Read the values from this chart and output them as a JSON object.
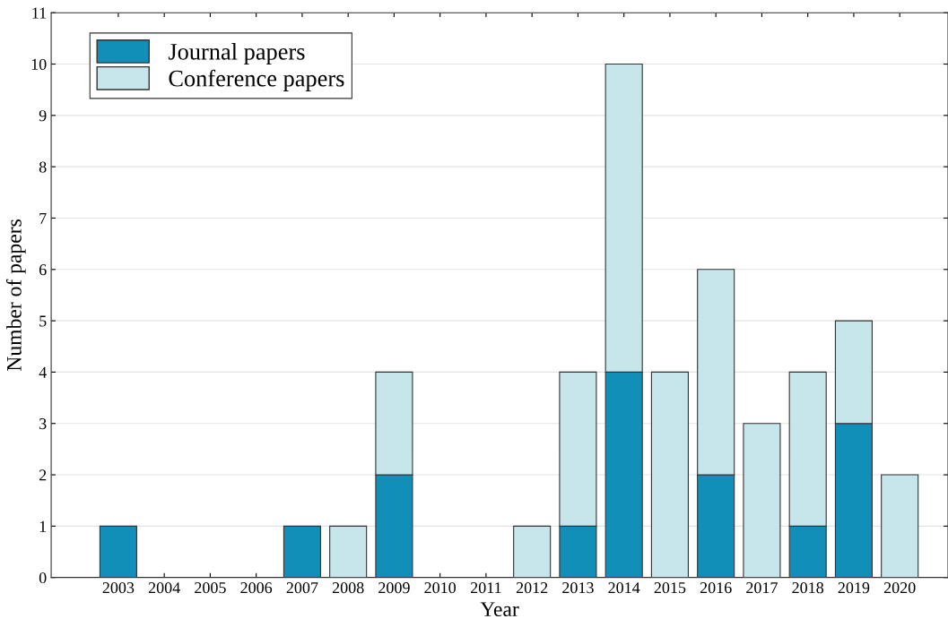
{
  "chart_data": {
    "type": "bar",
    "xlabel": "Year",
    "ylabel": "Number of papers",
    "categories": [
      "2003",
      "2004",
      "2005",
      "2006",
      "2007",
      "2008",
      "2009",
      "2010",
      "2011",
      "2012",
      "2013",
      "2014",
      "2015",
      "2016",
      "2017",
      "2018",
      "2019",
      "2020"
    ],
    "stacked": true,
    "series": [
      {
        "name": "Journal papers",
        "color": "#118fb8",
        "values": [
          1,
          0,
          0,
          0,
          1,
          0,
          2,
          0,
          0,
          0,
          1,
          4,
          0,
          2,
          0,
          1,
          3,
          0
        ]
      },
      {
        "name": "Conference papers",
        "color": "#c6e6ec",
        "values": [
          0,
          0,
          0,
          0,
          0,
          1,
          2,
          0,
          0,
          1,
          3,
          6,
          4,
          4,
          3,
          3,
          2,
          2
        ]
      }
    ],
    "ylim": [
      0,
      11
    ],
    "yticks": [
      0,
      1,
      2,
      3,
      4,
      5,
      6,
      7,
      8,
      9,
      10,
      11
    ],
    "grid": "y",
    "legend": "top left"
  }
}
